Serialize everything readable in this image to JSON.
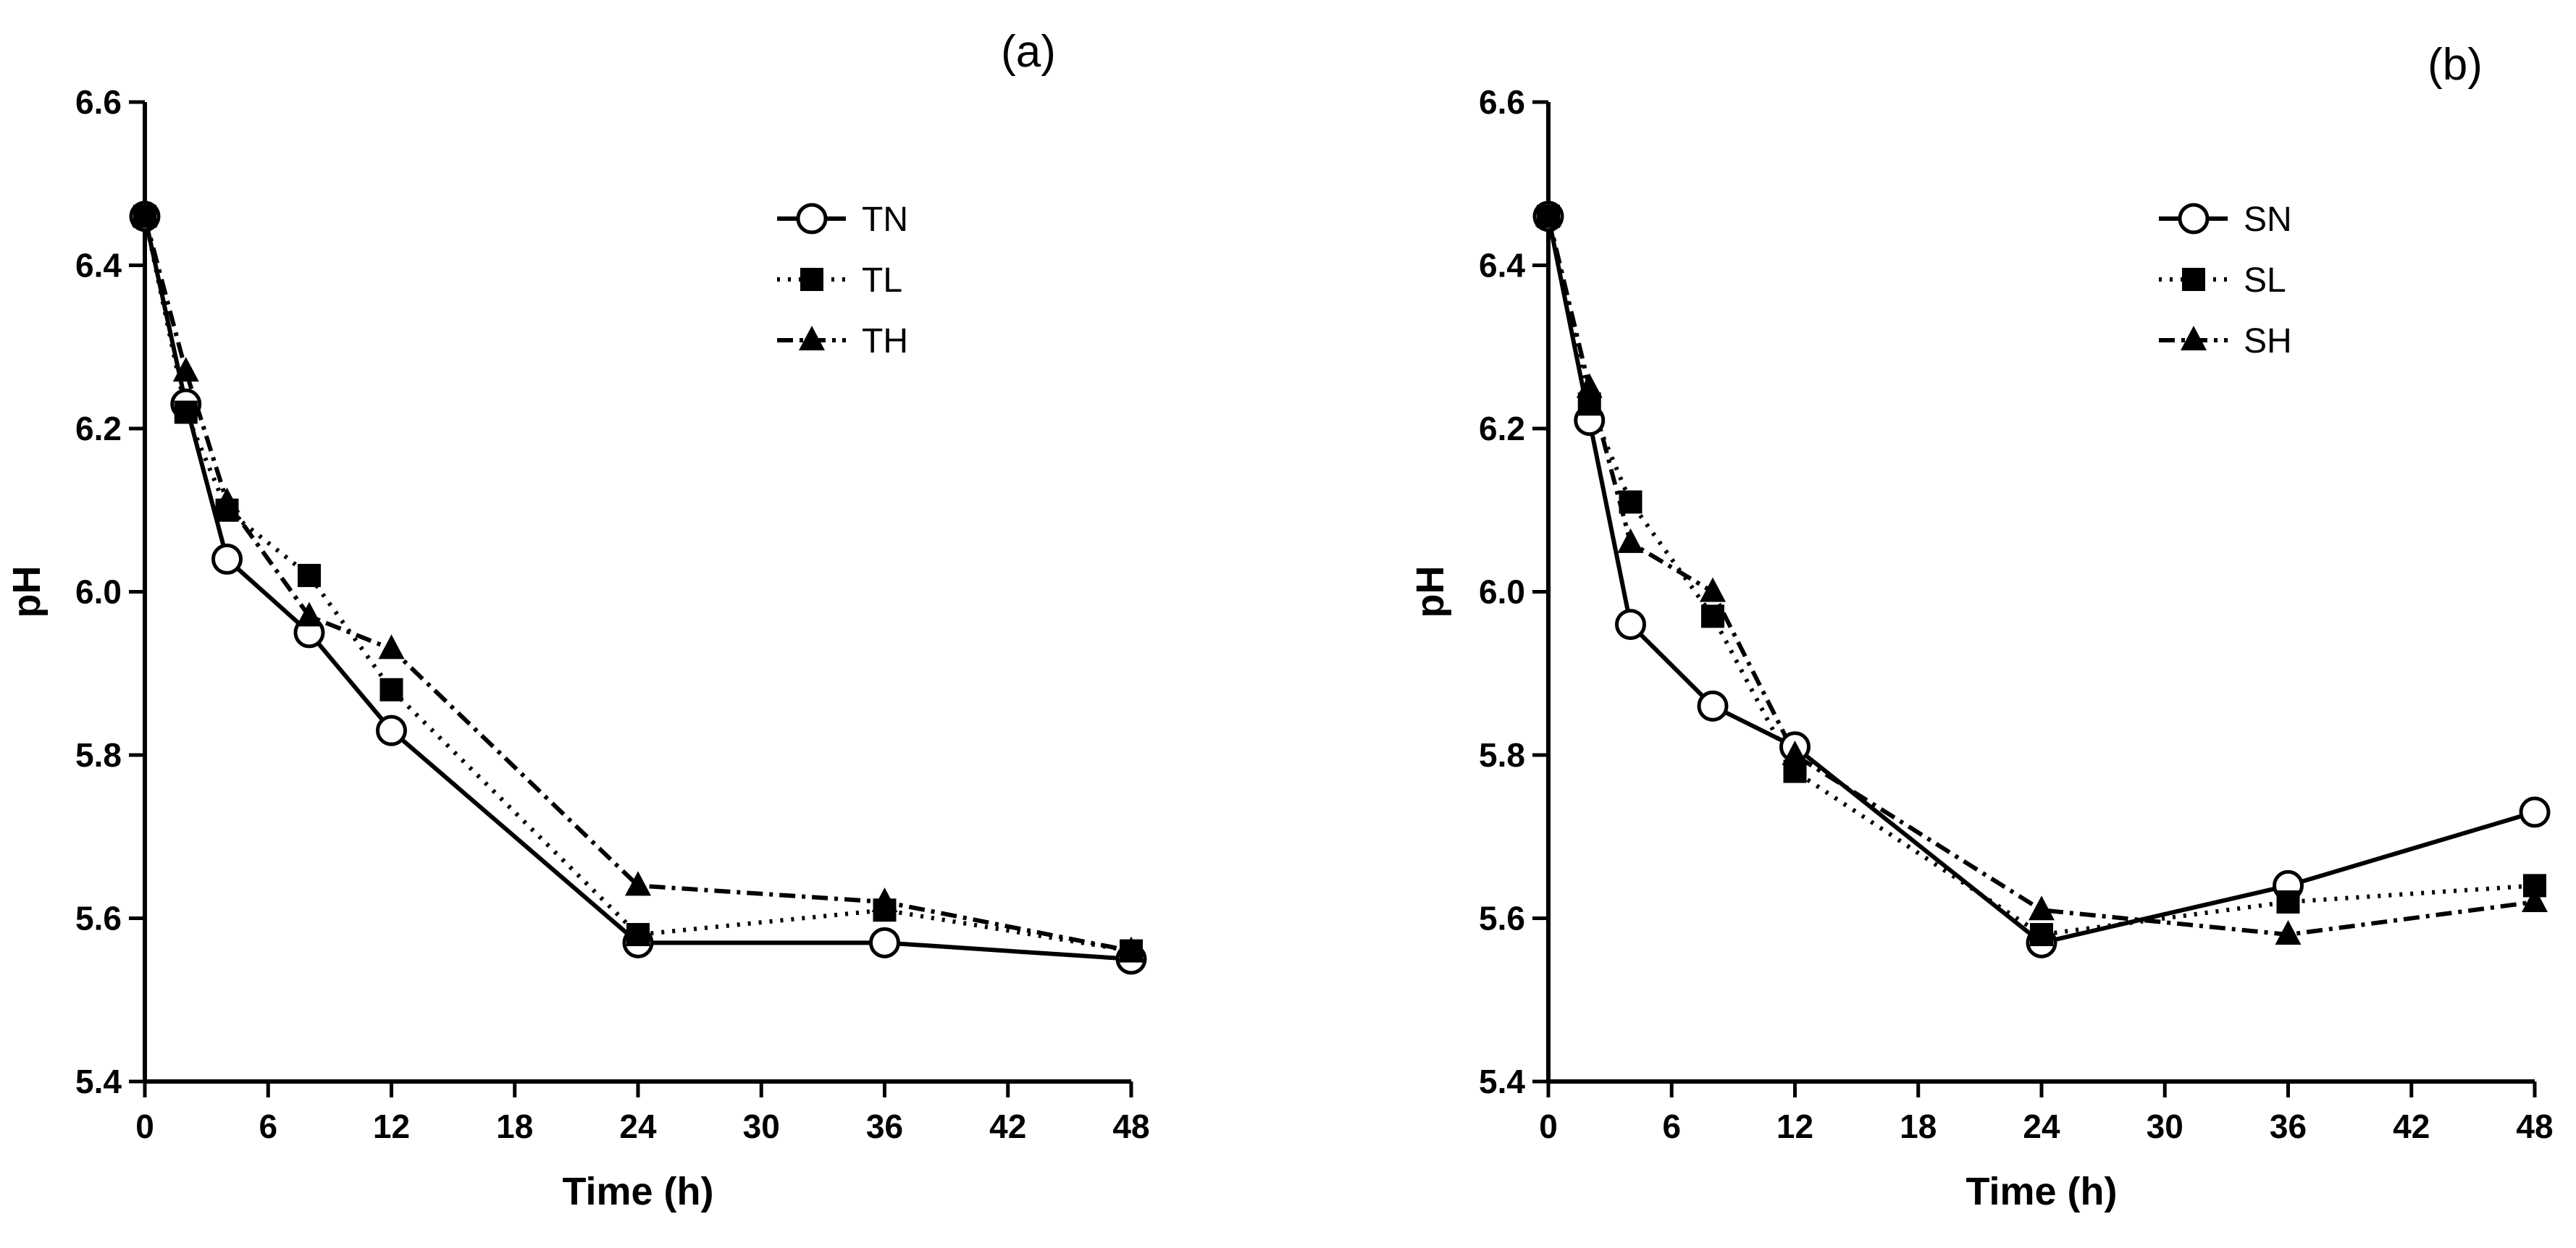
{
  "chart_data": [
    {
      "type": "line",
      "panel_label": "(a)",
      "xlabel": "Time (h)",
      "ylabel": "pH",
      "xlim": [
        0,
        48
      ],
      "ylim": [
        5.4,
        6.6
      ],
      "xticks": [
        "0",
        "6",
        "12",
        "18",
        "24",
        "30",
        "36",
        "42",
        "48"
      ],
      "yticks": [
        "5.4",
        "5.6",
        "5.8",
        "6.0",
        "6.2",
        "6.4",
        "6.6"
      ],
      "legend_position": "top-right",
      "series": [
        {
          "name": "TN",
          "marker": "open-circle",
          "line": "solid",
          "x": [
            0,
            2,
            4,
            8,
            12,
            24,
            36,
            48
          ],
          "y": [
            6.46,
            6.23,
            6.04,
            5.95,
            5.83,
            5.57,
            5.57,
            5.55
          ]
        },
        {
          "name": "TL",
          "marker": "filled-square",
          "line": "dotted",
          "x": [
            0,
            2,
            4,
            8,
            12,
            24,
            36,
            48
          ],
          "y": [
            6.46,
            6.22,
            6.1,
            6.02,
            5.88,
            5.58,
            5.61,
            5.56
          ]
        },
        {
          "name": "TH",
          "marker": "filled-triangle",
          "line": "dash-dot",
          "x": [
            0,
            2,
            4,
            8,
            12,
            24,
            36,
            48
          ],
          "y": [
            6.46,
            6.27,
            6.11,
            5.97,
            5.93,
            5.64,
            5.62,
            5.56
          ]
        }
      ]
    },
    {
      "type": "line",
      "panel_label": "(b)",
      "xlabel": "Time (h)",
      "ylabel": "pH",
      "xlim": [
        0,
        48
      ],
      "ylim": [
        5.4,
        6.6
      ],
      "xticks": [
        "0",
        "6",
        "12",
        "18",
        "24",
        "30",
        "36",
        "42",
        "48"
      ],
      "yticks": [
        "5.4",
        "5.6",
        "5.8",
        "6.0",
        "6.2",
        "6.4",
        "6.6"
      ],
      "legend_position": "top-right",
      "series": [
        {
          "name": "SN",
          "marker": "open-circle",
          "line": "solid",
          "x": [
            0,
            2,
            4,
            8,
            12,
            24,
            36,
            48
          ],
          "y": [
            6.46,
            6.21,
            5.96,
            5.86,
            5.81,
            5.57,
            5.64,
            5.73
          ]
        },
        {
          "name": "SL",
          "marker": "filled-square",
          "line": "dotted",
          "x": [
            0,
            2,
            4,
            8,
            12,
            24,
            36,
            48
          ],
          "y": [
            6.46,
            6.23,
            6.11,
            5.97,
            5.78,
            5.58,
            5.62,
            5.64
          ]
        },
        {
          "name": "SH",
          "marker": "filled-triangle",
          "line": "dash-dot",
          "x": [
            0,
            2,
            4,
            8,
            12,
            24,
            36,
            48
          ],
          "y": [
            6.46,
            6.25,
            6.06,
            6.0,
            5.8,
            5.61,
            5.58,
            5.62
          ]
        }
      ]
    }
  ]
}
